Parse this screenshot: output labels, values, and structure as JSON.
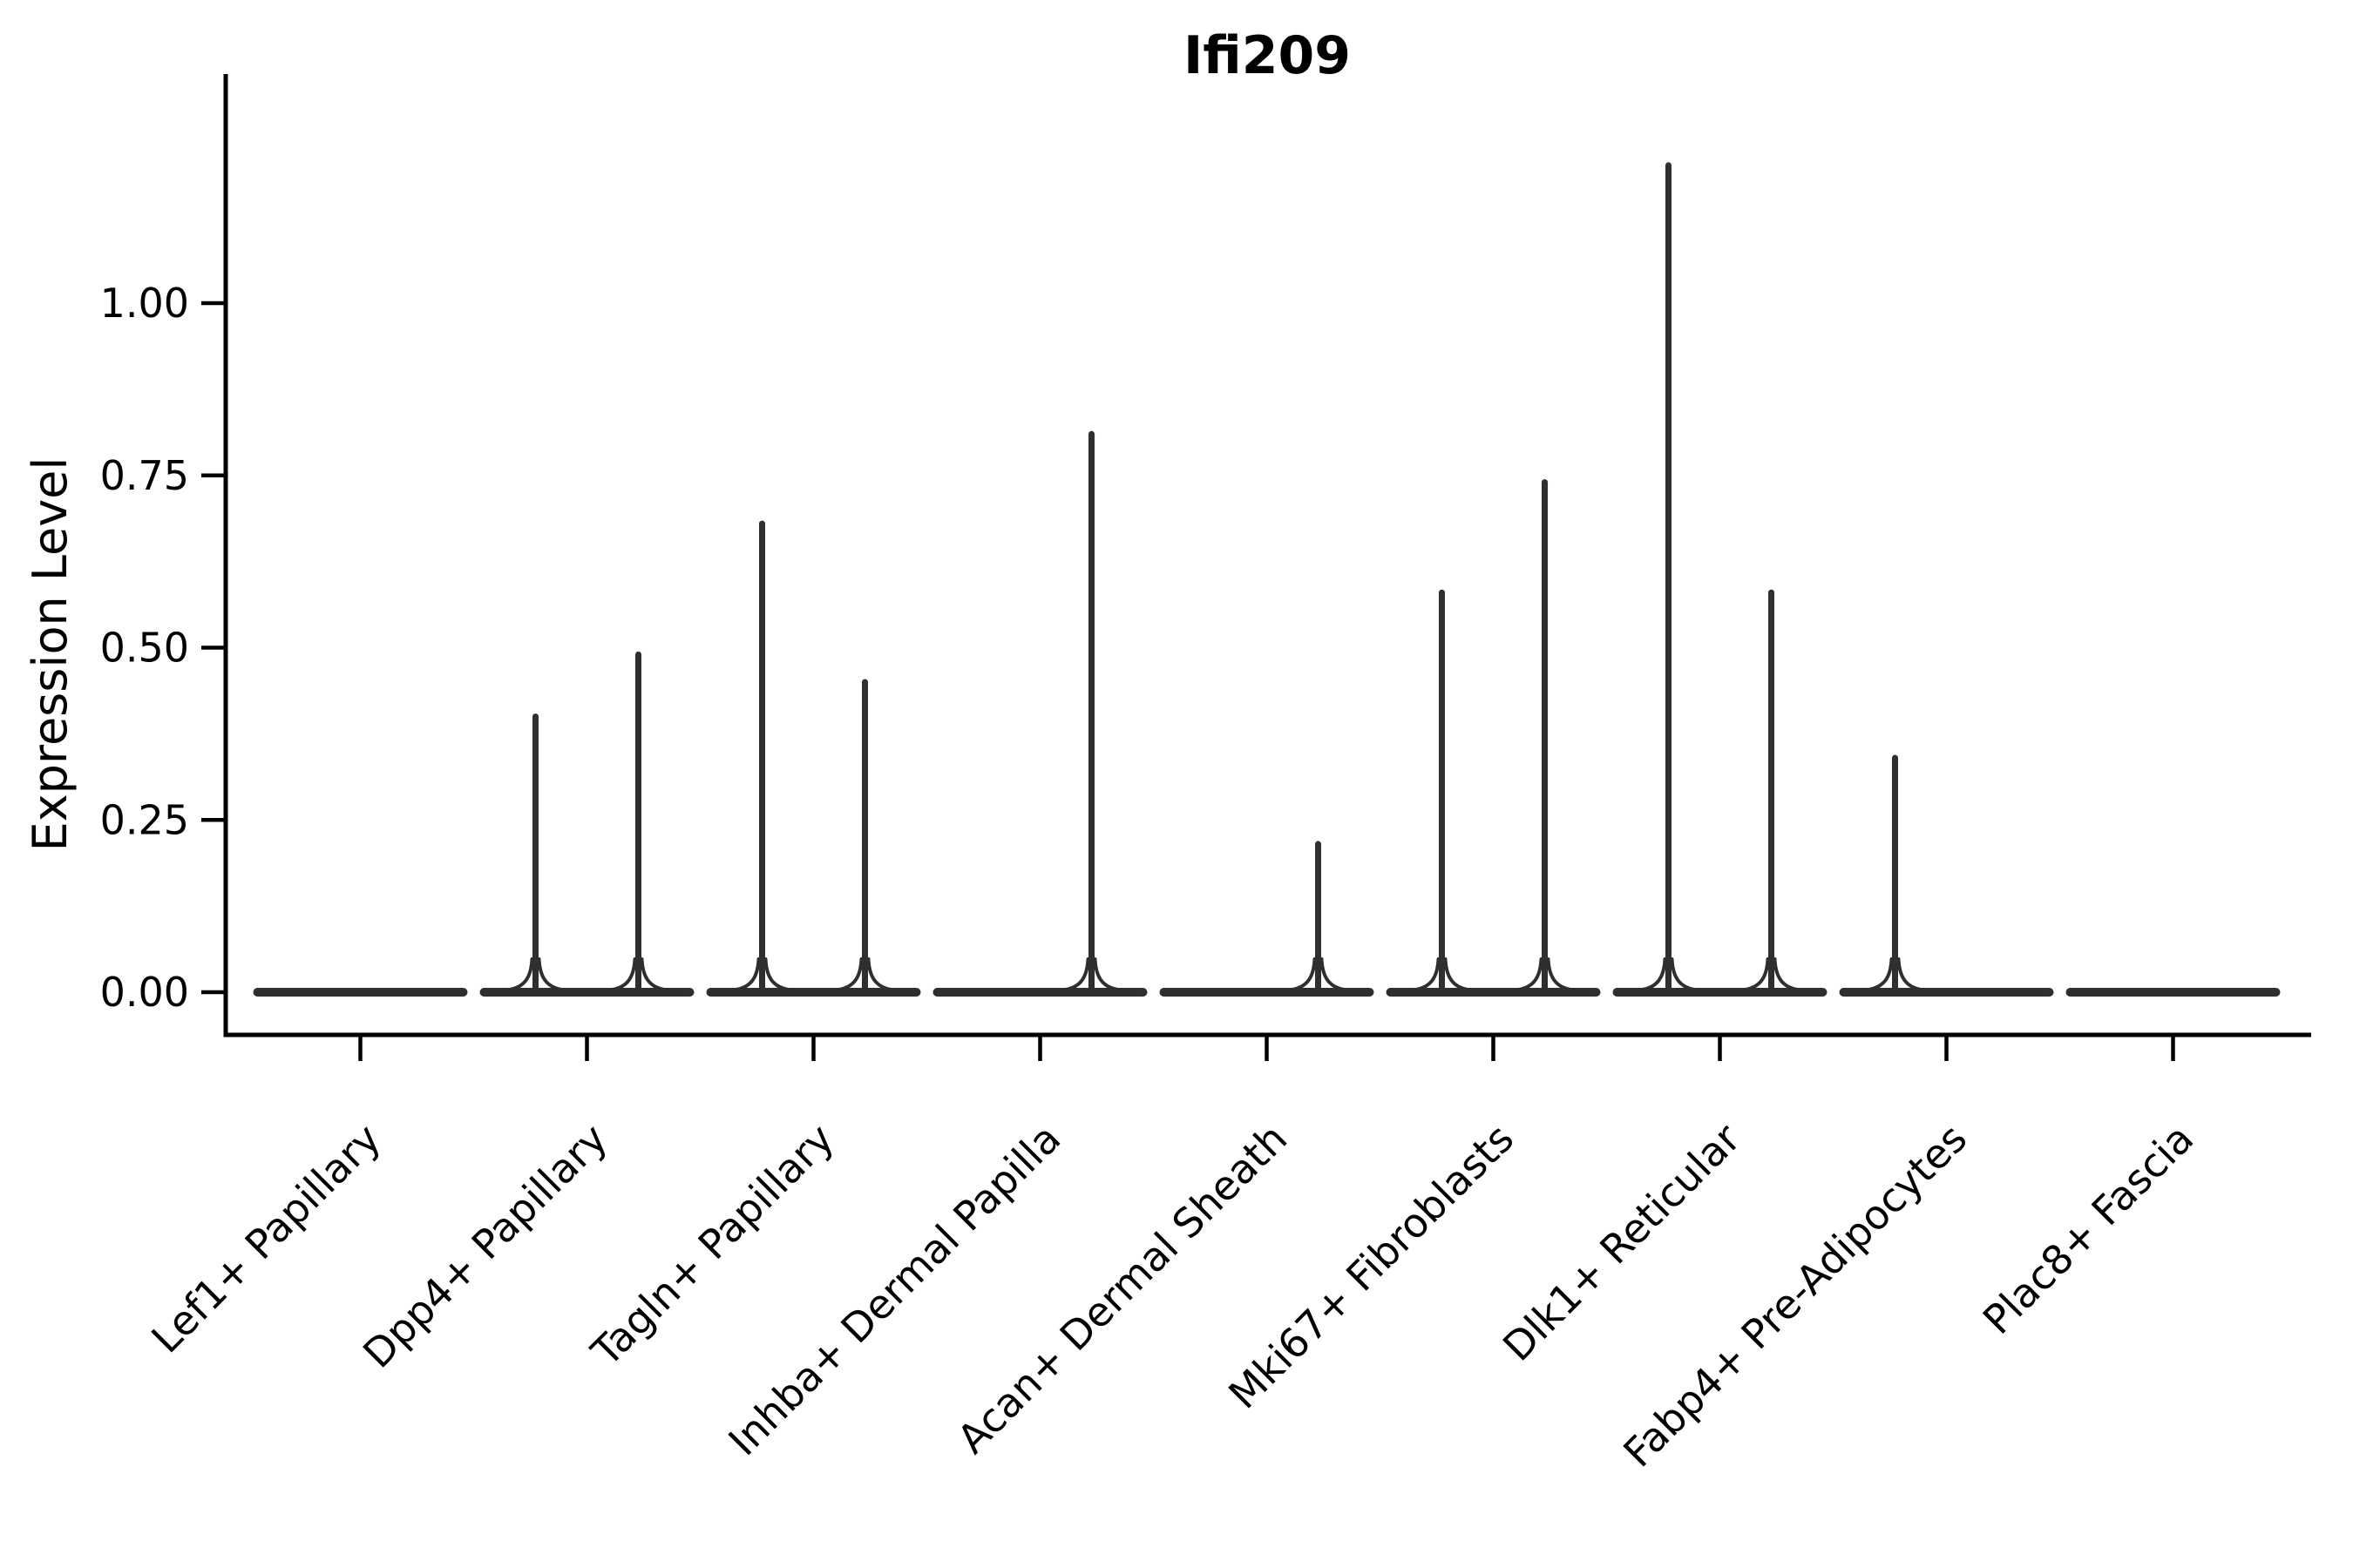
{
  "title": "Ifi209",
  "y_axis": {
    "label": "Expression Level",
    "tick_labels": [
      "0.00",
      "0.25",
      "0.50",
      "0.75",
      "1.00"
    ]
  },
  "chart_data": {
    "type": "violin",
    "title": "Ifi209",
    "xlabel": "",
    "ylabel": "Expression Level",
    "ylim": [
      -0.062,
      1.33
    ],
    "yticks": [
      0.0,
      0.25,
      0.5,
      0.75,
      1.0
    ],
    "ytick_labels": [
      "0.00",
      "0.25",
      "0.50",
      "0.75",
      "1.00"
    ],
    "grid": false,
    "legend": "none",
    "description": "Violin plot of Ifi209 expression per fibroblast subtype; each category shows a pair of collapsed violins (flat at 0) with thin density spikes up to the maximum expression value.",
    "categories": [
      "Lef1+ Papillary",
      "Dpp4+ Papillary",
      "Tagln+ Papillary",
      "Inhba+ Dermal Papilla",
      "Acan+ Dermal Sheath",
      "Mki67+ Fibroblasts",
      "Dlk1+ Reticular",
      "Fabp4+ Pre-Adipocytes",
      "Plac8+ Fascia"
    ],
    "violins": [
      {
        "category": "Lef1+ Papillary",
        "halves": [
          {
            "side": "left",
            "max": 0
          },
          {
            "side": "right",
            "max": 0
          }
        ]
      },
      {
        "category": "Dpp4+ Papillary",
        "halves": [
          {
            "side": "left",
            "max": 0.4
          },
          {
            "side": "right",
            "max": 0.49
          }
        ]
      },
      {
        "category": "Tagln+ Papillary",
        "halves": [
          {
            "side": "left",
            "max": 0.68
          },
          {
            "side": "right",
            "max": 0.45
          }
        ]
      },
      {
        "category": "Inhba+ Dermal Papilla",
        "halves": [
          {
            "side": "left",
            "max": 0
          },
          {
            "side": "right",
            "max": 0.81
          }
        ]
      },
      {
        "category": "Acan+ Dermal Sheath",
        "halves": [
          {
            "side": "left",
            "max": 0
          },
          {
            "side": "right",
            "max": 0.215
          }
        ]
      },
      {
        "category": "Mki67+ Fibroblasts",
        "halves": [
          {
            "side": "left",
            "max": 0.58
          },
          {
            "side": "right",
            "max": 0.74
          }
        ]
      },
      {
        "category": "Dlk1+ Reticular",
        "halves": [
          {
            "side": "left",
            "max": 1.2
          },
          {
            "side": "right",
            "max": 0.58
          }
        ]
      },
      {
        "category": "Fabp4+ Pre-Adipocytes",
        "halves": [
          {
            "side": "left",
            "max": 0.34
          },
          {
            "side": "right",
            "max": 0
          }
        ]
      },
      {
        "category": "Plac8+ Fascia",
        "halves": [
          {
            "side": "left",
            "max": 0
          },
          {
            "side": "right",
            "max": 0
          }
        ]
      }
    ],
    "colors": {
      "violin": "#2f2f2f",
      "axis": "#000000",
      "text": "#000000",
      "background": "#ffffff"
    }
  }
}
